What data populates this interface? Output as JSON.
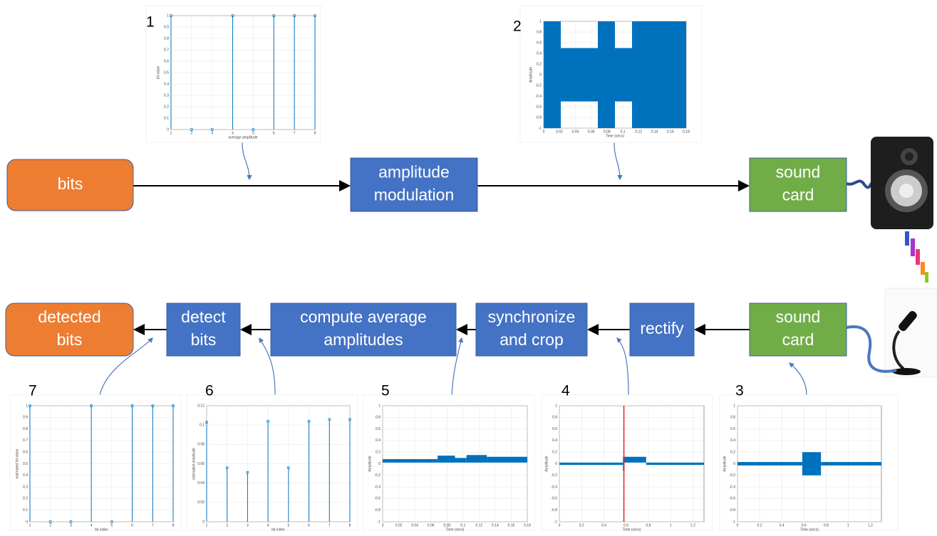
{
  "blocks": [
    {
      "label": "bits"
    },
    {
      "label": "amplitude modulation"
    },
    {
      "label": "sound card"
    },
    {
      "label": "detected bits"
    },
    {
      "label": "detect bits"
    },
    {
      "label": "compute average amplitudes"
    },
    {
      "label": "synchronize and crop"
    },
    {
      "label": "rectify"
    },
    {
      "label": "sound card"
    }
  ],
  "plots": [
    {
      "number": "1",
      "type": "stem",
      "xlabel": "average amplitude",
      "ylabel": "bit value",
      "xlim": [
        1,
        8
      ],
      "ylim": [
        0,
        1
      ],
      "xticks": [
        1,
        2,
        3,
        4,
        5,
        6,
        7,
        8
      ],
      "yticks": [
        0,
        0.1,
        0.2,
        0.3,
        0.4,
        0.5,
        0.6,
        0.7,
        0.8,
        0.9,
        1
      ],
      "x": [
        1,
        2,
        3,
        4,
        5,
        6,
        7,
        8
      ],
      "values": [
        1,
        0,
        0,
        1,
        0,
        1,
        1,
        1
      ]
    },
    {
      "number": "2",
      "type": "waveform",
      "xlabel": "Time (secs)",
      "ylabel": "Amplitude",
      "xlim": [
        0,
        0.18
      ],
      "ylim": [
        -1,
        1
      ],
      "xticks": [
        0,
        0.02,
        0.04,
        0.06,
        0.08,
        0.1,
        0.12,
        0.14,
        0.16,
        0.18
      ],
      "yticks": [
        -1,
        -0.8,
        -0.6,
        -0.4,
        -0.2,
        0,
        0.2,
        0.4,
        0.6,
        0.8,
        1
      ]
    },
    {
      "number": "3",
      "type": "waveform",
      "xlabel": "Time (secs)",
      "ylabel": "Amplitude",
      "xlim": [
        0,
        1.3
      ],
      "ylim": [
        -1,
        1
      ],
      "xticks": [
        0,
        0.2,
        0.4,
        0.6,
        0.8,
        1,
        1.2
      ],
      "yticks": [
        -1,
        -0.8,
        -0.6,
        -0.4,
        -0.2,
        0,
        0.2,
        0.4,
        0.6,
        0.8,
        1
      ]
    },
    {
      "number": "4",
      "type": "waveform",
      "xlabel": "Time (secs)",
      "ylabel": "Amplitude",
      "xlim": [
        0,
        1.3
      ],
      "ylim": [
        -1,
        1
      ],
      "xticks": [
        0,
        0.2,
        0.4,
        0.6,
        0.8,
        1,
        1.2
      ],
      "yticks": [
        -1,
        -0.8,
        -0.6,
        -0.4,
        -0.2,
        0,
        0.2,
        0.4,
        0.6,
        0.8,
        1
      ],
      "marker_x": 0.58,
      "marker_color": "#e02020"
    },
    {
      "number": "5",
      "type": "waveform",
      "xlabel": "Time (secs)",
      "ylabel": "Amplitude",
      "xlim": [
        0,
        0.18
      ],
      "ylim": [
        -1,
        1
      ],
      "xticks": [
        0,
        0.02,
        0.04,
        0.06,
        0.08,
        0.1,
        0.12,
        0.14,
        0.16,
        0.18
      ],
      "yticks": [
        -1,
        -0.8,
        -0.6,
        -0.4,
        -0.2,
        0,
        0.2,
        0.4,
        0.6,
        0.8,
        1
      ]
    },
    {
      "number": "6",
      "type": "stem",
      "xlabel": "bit index",
      "ylabel": "estimated amplitude",
      "xlim": [
        1,
        8
      ],
      "ylim": [
        0,
        0.12
      ],
      "xticks": [
        1,
        2,
        3,
        4,
        5,
        6,
        7,
        8
      ],
      "yticks": [
        0,
        0.02,
        0.04,
        0.06,
        0.08,
        0.1,
        0.12
      ],
      "x": [
        1,
        2,
        3,
        4,
        5,
        6,
        7,
        8
      ],
      "values": [
        0.103,
        0.056,
        0.051,
        0.104,
        0.056,
        0.104,
        0.106,
        0.106
      ]
    },
    {
      "number": "7",
      "type": "stem",
      "xlabel": "bit index",
      "ylabel": "estimated bit value",
      "xlim": [
        1,
        8
      ],
      "ylim": [
        0,
        1
      ],
      "xticks": [
        1,
        2,
        3,
        4,
        5,
        6,
        7,
        8
      ],
      "yticks": [
        0,
        0.1,
        0.2,
        0.3,
        0.4,
        0.5,
        0.6,
        0.7,
        0.8,
        0.9,
        1
      ],
      "x": [
        1,
        2,
        3,
        4,
        5,
        6,
        7,
        8
      ],
      "values": [
        1,
        0,
        0,
        1,
        0,
        1,
        1,
        1
      ]
    }
  ]
}
